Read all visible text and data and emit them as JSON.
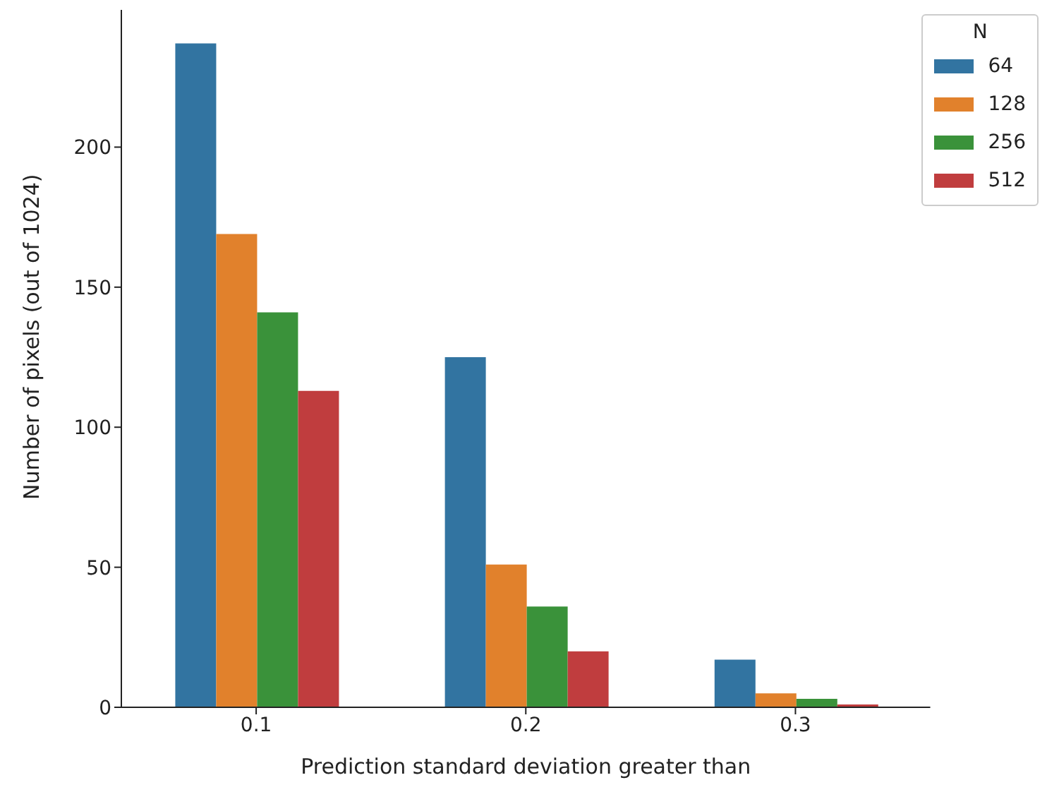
{
  "chart_data": {
    "type": "bar",
    "xlabel": "Prediction standard deviation greater than",
    "ylabel": "Number of pixels (out of 1024)",
    "legend_title": "N",
    "categories": [
      "0.1",
      "0.2",
      "0.3"
    ],
    "series": [
      {
        "name": "64",
        "color": "#3274a1",
        "values": [
          237,
          125,
          17
        ]
      },
      {
        "name": "128",
        "color": "#e1812c",
        "values": [
          169,
          51,
          5
        ]
      },
      {
        "name": "256",
        "color": "#3a923a",
        "values": [
          141,
          36,
          3
        ]
      },
      {
        "name": "512",
        "color": "#c03d3e",
        "values": [
          113,
          20,
          1
        ]
      }
    ],
    "ylim": [
      0,
      249
    ],
    "yticks": [
      0,
      50,
      100,
      150,
      200
    ],
    "grid": false,
    "legend": "top right"
  }
}
